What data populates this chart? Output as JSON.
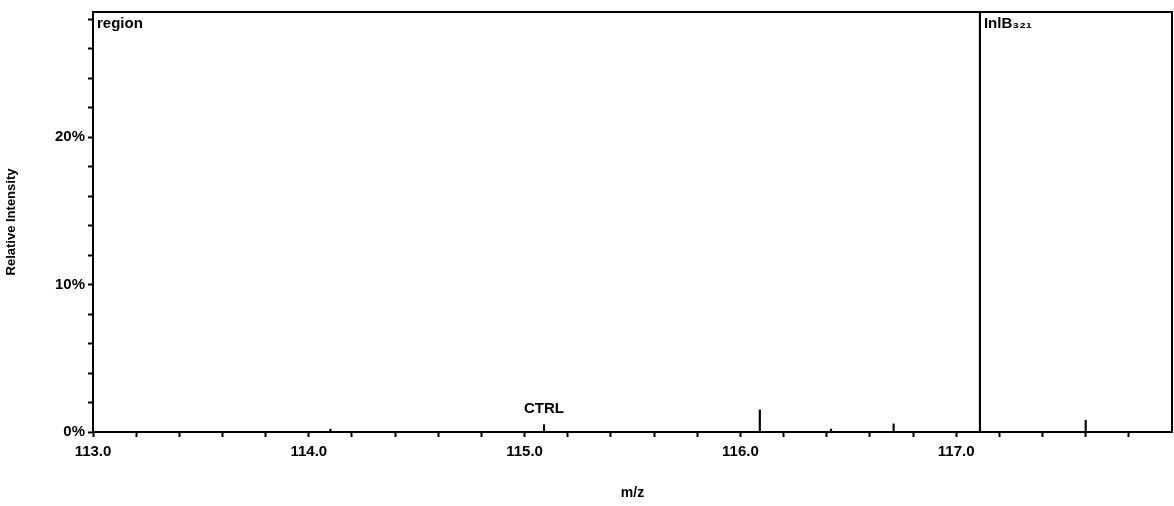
{
  "chart_data": {
    "type": "bar",
    "xlabel": "m/z",
    "ylabel": "Relative Intensity",
    "x": [
      114.1,
      115.09,
      116.09,
      116.42,
      116.71,
      117.11,
      117.6
    ],
    "series": [
      {
        "color": "#000000",
        "values": [
          0.2,
          0.5,
          1.5,
          0.2,
          0.55,
          28.5,
          0.8
        ]
      }
    ],
    "xlim": [
      113.0,
      118.0
    ],
    "xticks": [
      {
        "value": 113.0,
        "label": "113.0"
      },
      {
        "value": 113.2,
        "label": null
      },
      {
        "value": 113.4,
        "label": null
      },
      {
        "value": 113.6,
        "label": null
      },
      {
        "value": 113.8,
        "label": null
      },
      {
        "value": 114.0,
        "label": "114.0"
      },
      {
        "value": 114.2,
        "label": null
      },
      {
        "value": 114.4,
        "label": null
      },
      {
        "value": 114.6,
        "label": null
      },
      {
        "value": 114.8,
        "label": null
      },
      {
        "value": 115.0,
        "label": "115.0"
      },
      {
        "value": 115.2,
        "label": null
      },
      {
        "value": 115.4,
        "label": null
      },
      {
        "value": 115.6,
        "label": null
      },
      {
        "value": 115.8,
        "label": null
      },
      {
        "value": 116.0,
        "label": "116.0"
      },
      {
        "value": 116.2,
        "label": null
      },
      {
        "value": 116.4,
        "label": null
      },
      {
        "value": 116.6,
        "label": null
      },
      {
        "value": 116.8,
        "label": null
      },
      {
        "value": 117.0,
        "label": "117.0"
      },
      {
        "value": 117.2,
        "label": null
      },
      {
        "value": 117.4,
        "label": null
      },
      {
        "value": 117.6,
        "label": null
      },
      {
        "value": 117.8,
        "label": null
      }
    ],
    "ylim": [
      0,
      28.5
    ],
    "yticks": [
      {
        "value": 0,
        "label": "0%"
      },
      {
        "value": 2,
        "label": null
      },
      {
        "value": 4,
        "label": null
      },
      {
        "value": 6,
        "label": null
      },
      {
        "value": 8,
        "label": null
      },
      {
        "value": 10,
        "label": "10%"
      },
      {
        "value": 12,
        "label": null
      },
      {
        "value": 14,
        "label": null
      },
      {
        "value": 16,
        "label": null
      },
      {
        "value": 18,
        "label": null
      },
      {
        "value": 20,
        "label": "20%"
      },
      {
        "value": 22,
        "label": null
      },
      {
        "value": 24,
        "label": null
      },
      {
        "value": 26,
        "label": null
      },
      {
        "value": 28,
        "label": null
      }
    ],
    "annotations": [
      "region",
      {
        "text": "CTRL",
        "x": 115.09,
        "y": 0.5
      },
      {
        "text": "InlB₃₂₁",
        "x": 117.11,
        "y": 28.5
      }
    ]
  }
}
